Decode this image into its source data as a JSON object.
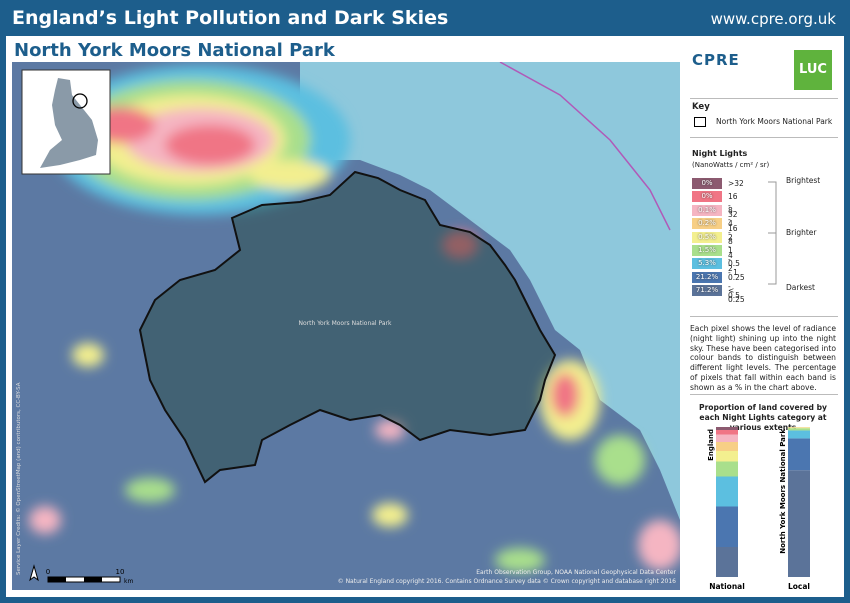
{
  "header": {
    "title": "England’s Light Pollution and Dark Skies",
    "url": "www.cpre.org.uk"
  },
  "subtitle": "North York Moors National Park",
  "logos": [
    "CPRE",
    "LUC"
  ],
  "key": {
    "title": "Key",
    "boundary": "North York Moors National Park"
  },
  "legend": {
    "title": "Night Lights",
    "units": "(NanoWatts / cm² / sr)",
    "bands": [
      {
        "label": ">32",
        "percent": "0%",
        "color": "#8c5a70"
      },
      {
        "label": "16 - 32",
        "percent": "0%",
        "color": "#f07585"
      },
      {
        "label": "8 - 16",
        "percent": "0.1%",
        "color": "#f5b5c2"
      },
      {
        "label": "4 - 8",
        "percent": "0.2%",
        "color": "#f7cf86"
      },
      {
        "label": "2 - 4",
        "percent": "0.5%",
        "color": "#f3ef8f"
      },
      {
        "label": "1 - 2",
        "percent": "1.5%",
        "color": "#a9df8c"
      },
      {
        "label": "0.5 - 1",
        "percent": "5.3%",
        "color": "#5cbfe0"
      },
      {
        "label": "0.25 - 0.5",
        "percent": "21.2%",
        "color": "#4b76b0"
      },
      {
        "label": "< 0.25",
        "percent": "71.2%",
        "color": "#5b7399"
      }
    ],
    "scale": [
      "Brightest",
      "Brighter",
      "Darkest"
    ]
  },
  "description": "Each pixel shows the level of radiance (night light) shining up into the night sky. These have been categorised into colour bands to distinguish between different light levels. The percentage of pixels that fall within each band is shown as a % in the chart above.",
  "chart": {
    "title": "Proportion of land covered by each Night Lights category at various extents",
    "series": [
      {
        "name": "National",
        "extent": "England",
        "values": [
          2,
          3,
          5,
          6,
          7,
          10,
          20,
          27,
          20
        ]
      },
      {
        "name": "Local",
        "extent": "North York Moors National Park",
        "values": [
          0,
          0,
          0.1,
          0.2,
          0.5,
          1.5,
          5.3,
          21.2,
          71.2
        ]
      }
    ]
  },
  "map": {
    "label": "North York Moors National Park",
    "scale": [
      "0",
      "10",
      "km"
    ],
    "credits": [
      "Service Layer Credits: © OpenStreetMap (and) contributors, CC-BY-SA",
      "Earth Observation Group, NOAA National Geophysical Data Center",
      "© Natural England copyright 2016. Contains Ordnance Survey data © Crown copyright and database right 2016"
    ]
  }
}
